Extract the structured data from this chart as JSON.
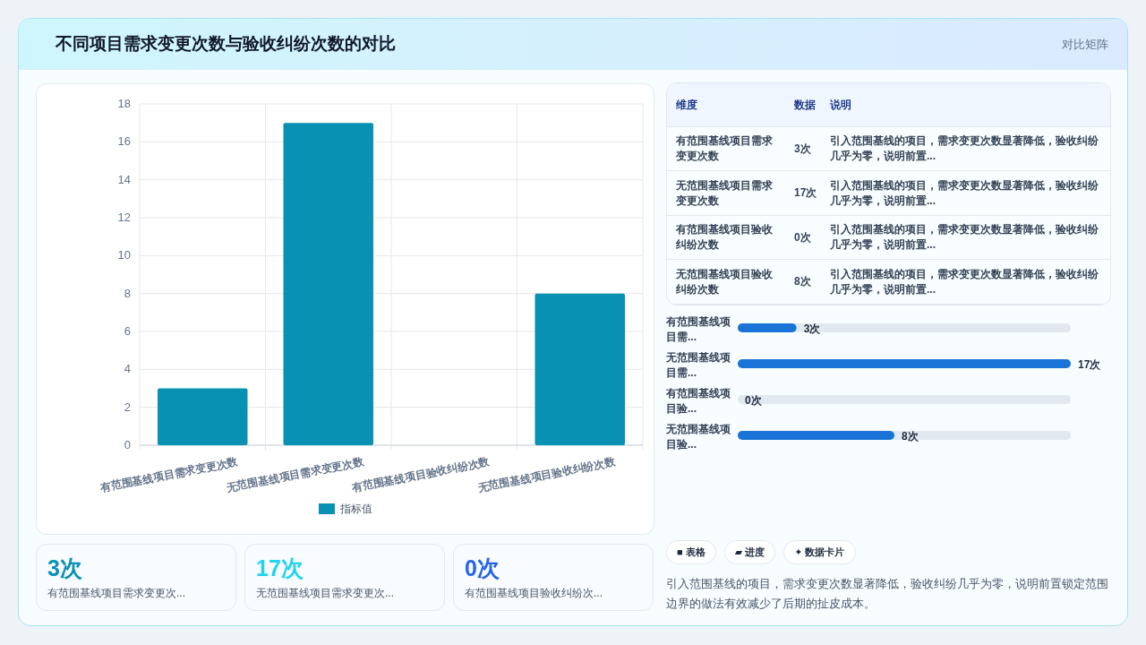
{
  "chart_data": [
    {
      "type": "bar",
      "title": "不同项目需求变更次数与验收纠纷次数的对比",
      "annotations": [
        "对比矩阵"
      ],
      "categories": [
        "有范围基线项目需求变更次数",
        "无范围基线项目需求变更次数",
        "有范围基线项目验收纠纷次数",
        "无范围基线项目验收纠纷次数"
      ],
      "series": [
        {
          "name": "指标值",
          "color": "#0891b2",
          "values": [
            3,
            17,
            0,
            8
          ]
        }
      ],
      "ylim": [
        0,
        18
      ],
      "yticks": [
        0,
        2,
        4,
        6,
        8,
        10,
        12,
        14,
        16,
        18
      ],
      "grid": true,
      "legend": "bottom"
    },
    {
      "type": "other",
      "annotations": [
        "维度",
        "数据",
        "说明",
        "有范围基线项目需求变更次数",
        "3次",
        "引入范围基线的项目，需求变更次数显著降低，验收纠纷几乎为零，说明前置...",
        "无范围基线项目需求变更次数",
        "17次",
        "引入范围基线的项目，需求变更次数显著降低，验收纠纷几乎为零，说明前置...",
        "有范围基线项目验收纠纷次数",
        "0次",
        "引入范围基线的项目，需求变更次数显著降低，验收纠纷几乎为零，说明前置...",
        "无范围基线项目验收纠纷次数",
        "8次",
        "引入范围基线的项目，需求变更次数显著降低，验收纠纷几乎为零，说明前置..."
      ]
    },
    {
      "type": "bar",
      "orientation": "horizontal",
      "categories": [
        "有范围基线项目需...",
        "无范围基线项目需...",
        "有范围基线项目验...",
        "无范围基线项目验..."
      ],
      "values": [
        3,
        17,
        0,
        8
      ],
      "value_labels": [
        "3次",
        "17次",
        "0次",
        "8次"
      ],
      "color": "#1a73d6",
      "grid": "y"
    },
    {
      "type": "other",
      "annotations": [
        "3次",
        "有范围基线项目需求变更次...",
        "17次",
        "无范围基线项目需求变更次...",
        "0次",
        "有范围基线项目验收纠纷次..."
      ],
      "colors": [
        "#0891b2",
        "#22d3ee",
        "#2563eb"
      ]
    },
    {
      "type": "other",
      "annotations": [
        "■ 表格",
        "▰ 进度",
        "✦ 数据卡片",
        "引入范围基线的项目，需求变更次数显著降低，验收纠纷几乎为零，说明前置锁定范围边界的做法有效减少了后期的扯皮成本。"
      ]
    }
  ]
}
